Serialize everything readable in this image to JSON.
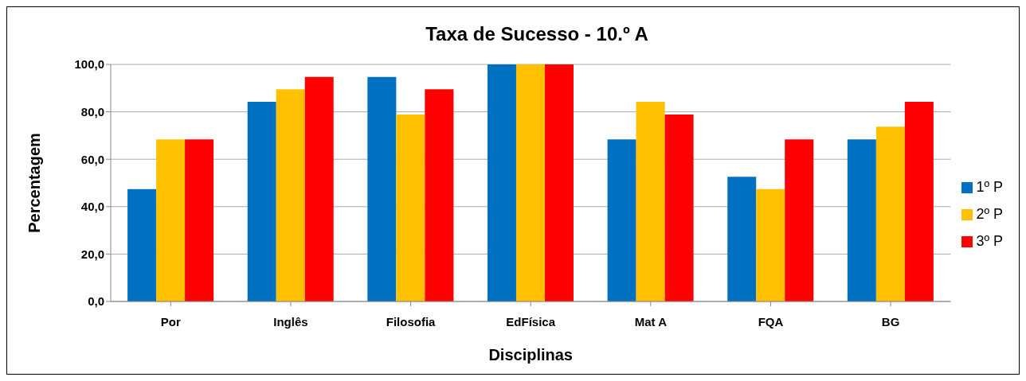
{
  "chart_data": {
    "type": "bar",
    "title": "Taxa de Sucesso - 10.º A",
    "xlabel": "Disciplinas",
    "ylabel": "Percentagem",
    "categories": [
      "Por",
      "Inglês",
      "Filosofia",
      "EdFísica",
      "Mat A",
      "FQA",
      "BG"
    ],
    "series": [
      {
        "name": "1º P",
        "color": "#0070c0",
        "values": [
          47.4,
          84.2,
          94.7,
          100,
          68.4,
          52.6,
          68.4
        ]
      },
      {
        "name": "2º P",
        "color": "#ffc000",
        "values": [
          68.4,
          89.5,
          78.9,
          100,
          84.2,
          47.4,
          73.7
        ]
      },
      {
        "name": "3º P",
        "color": "#ff0000",
        "values": [
          68.4,
          94.7,
          89.5,
          100,
          78.9,
          68.4,
          84.2
        ]
      }
    ],
    "ylim": [
      0,
      100
    ],
    "yticks": [
      {
        "value": 0,
        "label": "0,0"
      },
      {
        "value": 20,
        "label": "20,0"
      },
      {
        "value": 40,
        "label": "40,0"
      },
      {
        "value": 60,
        "label": "60,0"
      },
      {
        "value": 80,
        "label": "80,0"
      },
      {
        "value": 100,
        "label": "100,0"
      }
    ],
    "grid": "y",
    "legend": "right"
  }
}
